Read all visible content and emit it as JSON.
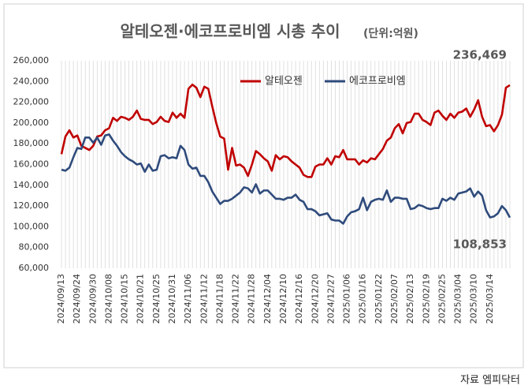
{
  "chart_data": {
    "type": "line",
    "title": "알테오젠·에코프로비엠 시총 추이",
    "subtitle": "(단위:억원)",
    "source": "자료 엠피닥터",
    "categories": [
      "2024/09/13",
      null,
      null,
      null,
      "2024/09/24",
      null,
      null,
      null,
      "2024/09/30",
      null,
      null,
      null,
      "2024/10/08",
      null,
      null,
      null,
      "2024/10/15",
      null,
      null,
      null,
      "2024/10/21",
      null,
      null,
      null,
      "2024/10/25",
      null,
      null,
      null,
      "2024/10/31",
      null,
      null,
      null,
      "2024/11/06",
      null,
      null,
      null,
      "2024/11/12",
      null,
      null,
      null,
      "2024/11/18",
      null,
      null,
      null,
      "2024/11/22",
      null,
      null,
      null,
      "2024/11/28",
      null,
      null,
      null,
      "2024/12/04",
      null,
      null,
      null,
      "2024/12/10",
      null,
      null,
      null,
      "2024/12/16",
      null,
      null,
      null,
      "2024/12/20",
      null,
      null,
      null,
      "2024/12/27",
      null,
      null,
      null,
      "2025/01/06",
      null,
      null,
      null,
      "2025/01/16",
      null,
      null,
      null,
      "2025/01/22",
      null,
      null,
      null,
      "2025/02/07",
      null,
      null,
      null,
      "2025/02/13",
      null,
      null,
      null,
      "2025/02/19",
      null,
      null,
      null,
      "2025/02/25",
      null,
      null,
      null,
      "2025/03/04",
      null,
      null,
      null,
      "2025/03/10",
      null,
      null,
      null,
      "2025/03/14",
      null,
      null,
      null,
      null,
      null
    ],
    "series": [
      {
        "name": "알테오젠",
        "color": "#c00000",
        "values": [
          170000,
          187000,
          193000,
          186000,
          188000,
          178000,
          176000,
          174000,
          178000,
          187000,
          188000,
          193000,
          195000,
          205000,
          202000,
          206000,
          205000,
          203000,
          206000,
          212000,
          204000,
          203000,
          203000,
          199000,
          201000,
          206000,
          202000,
          201000,
          210000,
          205000,
          209000,
          205000,
          233000,
          237000,
          234000,
          225000,
          235000,
          233000,
          216000,
          200000,
          187000,
          185000,
          155000,
          176000,
          159000,
          160000,
          157000,
          149000,
          160000,
          173000,
          170000,
          166000,
          163000,
          154000,
          169000,
          165000,
          168000,
          167000,
          163000,
          160000,
          157000,
          150000,
          148000,
          148000,
          158000,
          160000,
          160000,
          166000,
          160000,
          168000,
          167000,
          174000,
          165000,
          165000,
          165000,
          160000,
          164000,
          162000,
          166000,
          165000,
          170000,
          175000,
          183000,
          186000,
          195000,
          199000,
          190000,
          200000,
          201000,
          209000,
          209000,
          203000,
          201000,
          198000,
          210000,
          212000,
          207000,
          203000,
          209000,
          205000,
          210000,
          211000,
          214000,
          206000,
          213000,
          222000,
          206000,
          197000,
          198000,
          192000,
          198000,
          208000,
          234000,
          236469
        ],
        "value_labels": {
          "113": "236,469"
        }
      },
      {
        "name": "에코프로비엠",
        "color": "#2f4b7c",
        "values": [
          155000,
          154000,
          157000,
          167000,
          176000,
          175000,
          186000,
          186000,
          181000,
          186000,
          179000,
          188000,
          189000,
          183000,
          178000,
          172000,
          168000,
          165000,
          163000,
          160000,
          161000,
          153000,
          160000,
          154000,
          155000,
          168000,
          169000,
          166000,
          167000,
          166000,
          178000,
          174000,
          160000,
          156000,
          157000,
          149000,
          149000,
          143000,
          134000,
          128000,
          122000,
          125000,
          125000,
          127000,
          130000,
          133000,
          138000,
          137000,
          133000,
          141000,
          132000,
          135000,
          135000,
          131000,
          127000,
          127000,
          126000,
          128000,
          128000,
          131000,
          126000,
          124000,
          117000,
          117000,
          115000,
          111000,
          112000,
          113000,
          107000,
          106000,
          106000,
          103000,
          110000,
          114000,
          115000,
          117000,
          128000,
          116000,
          124000,
          126000,
          127000,
          126000,
          135000,
          124000,
          128000,
          128000,
          127000,
          127000,
          117000,
          118000,
          121000,
          120000,
          118000,
          117000,
          118000,
          118000,
          127000,
          125000,
          128000,
          126000,
          132000,
          133000,
          134000,
          137000,
          129000,
          134000,
          130000,
          116000,
          109000,
          110000,
          113000,
          120000,
          116000,
          108853
        ],
        "value_labels": {
          "113": "108,853"
        }
      }
    ],
    "ylim": [
      60000,
      260000
    ],
    "yticks": [
      {
        "value": 60000,
        "label": "60,000"
      },
      {
        "value": 80000,
        "label": "80,000"
      },
      {
        "value": 100000,
        "label": "100,000"
      },
      {
        "value": 120000,
        "label": "120,000"
      },
      {
        "value": 140000,
        "label": "140,000"
      },
      {
        "value": 160000,
        "label": "160,000"
      },
      {
        "value": 180000,
        "label": "180,000"
      },
      {
        "value": 200000,
        "label": "200,000"
      },
      {
        "value": 220000,
        "label": "220,000"
      },
      {
        "value": 240000,
        "label": "240,000"
      },
      {
        "value": 260000,
        "label": "260,000"
      }
    ],
    "grid": "x"
  }
}
